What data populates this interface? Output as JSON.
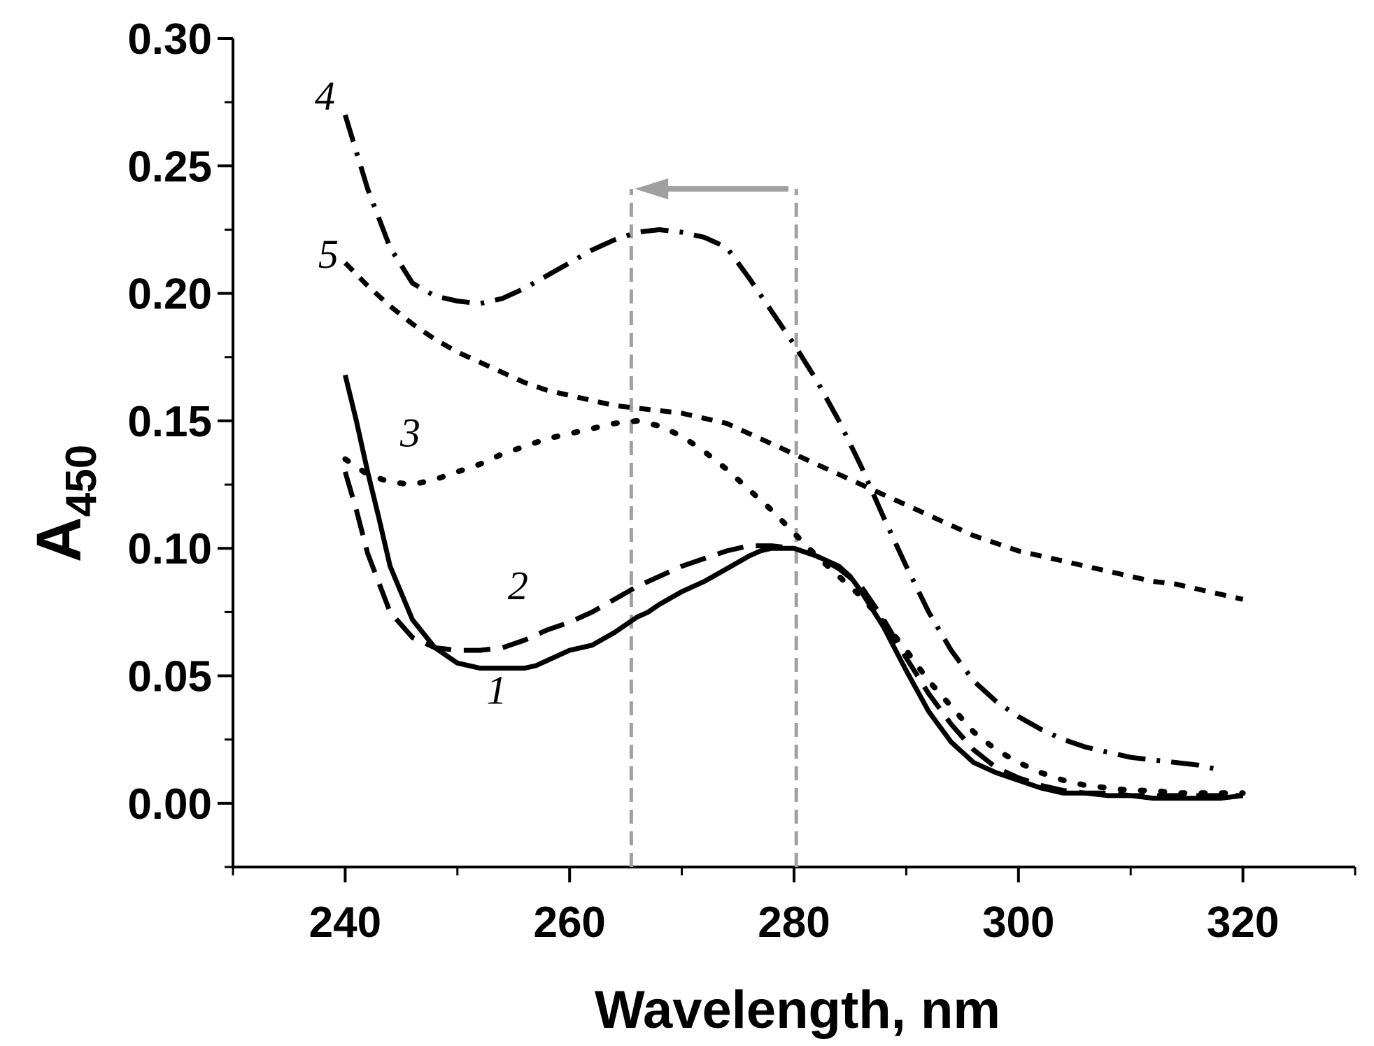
{
  "chart_data": {
    "type": "line",
    "title": "",
    "xlabel": "Wavelength, nm",
    "ylabel_main": "A",
    "ylabel_sub": "450",
    "xlim": [
      230,
      330
    ],
    "ylim": [
      -0.025,
      0.3
    ],
    "x_ticks": [
      {
        "value": 240,
        "label": "240"
      },
      {
        "value": 260,
        "label": "260"
      },
      {
        "value": 280,
        "label": "280"
      },
      {
        "value": 300,
        "label": "300"
      },
      {
        "value": 320,
        "label": "320"
      }
    ],
    "y_ticks": [
      {
        "value": 0.0,
        "label": "0.00"
      },
      {
        "value": 0.05,
        "label": "0.05"
      },
      {
        "value": 0.1,
        "label": "0.10"
      },
      {
        "value": 0.15,
        "label": "0.15"
      },
      {
        "value": 0.2,
        "label": "0.20"
      },
      {
        "value": 0.25,
        "label": "0.25"
      },
      {
        "value": 0.3,
        "label": "0.30"
      }
    ],
    "grid": false,
    "series": [
      {
        "name": "1",
        "style": "solid",
        "x": [
          240,
          241,
          242,
          243,
          244,
          246,
          248,
          250,
          252,
          254,
          256,
          257,
          258,
          260,
          262,
          264,
          265,
          266,
          267,
          268,
          270,
          272,
          274,
          276,
          277,
          278,
          279,
          280,
          282,
          284,
          285,
          286,
          288,
          290,
          292,
          294,
          296,
          298,
          300,
          302,
          304,
          306,
          308,
          310,
          312,
          314,
          316,
          318,
          320
        ],
        "y": [
          0.168,
          0.15,
          0.13,
          0.112,
          0.093,
          0.072,
          0.061,
          0.055,
          0.053,
          0.053,
          0.053,
          0.054,
          0.056,
          0.06,
          0.062,
          0.067,
          0.07,
          0.073,
          0.075,
          0.078,
          0.083,
          0.087,
          0.092,
          0.097,
          0.099,
          0.1,
          0.1,
          0.1,
          0.097,
          0.093,
          0.089,
          0.083,
          0.069,
          0.052,
          0.036,
          0.024,
          0.016,
          0.012,
          0.009,
          0.006,
          0.004,
          0.004,
          0.003,
          0.003,
          0.002,
          0.002,
          0.002,
          0.002,
          0.003
        ]
      },
      {
        "name": "2",
        "style": "dash",
        "x": [
          240,
          241,
          242,
          244,
          246,
          248,
          250,
          252,
          254,
          256,
          258,
          260,
          262,
          264,
          266,
          268,
          270,
          272,
          274,
          276,
          278,
          280,
          282,
          284,
          286,
          288,
          290,
          292,
          294,
          296,
          298,
          300,
          302,
          304,
          306,
          308,
          310,
          312,
          314,
          316,
          318,
          320
        ],
        "y": [
          0.13,
          0.115,
          0.098,
          0.075,
          0.065,
          0.061,
          0.06,
          0.06,
          0.061,
          0.064,
          0.068,
          0.071,
          0.075,
          0.08,
          0.085,
          0.089,
          0.093,
          0.096,
          0.099,
          0.101,
          0.101,
          0.1,
          0.097,
          0.092,
          0.085,
          0.072,
          0.057,
          0.043,
          0.031,
          0.021,
          0.014,
          0.01,
          0.007,
          0.005,
          0.004,
          0.004,
          0.003,
          0.003,
          0.003,
          0.003,
          0.003,
          0.003
        ]
      },
      {
        "name": "3",
        "style": "dot",
        "x": [
          240,
          242,
          244,
          246,
          248,
          250,
          252,
          254,
          256,
          258,
          260,
          262,
          264,
          266,
          268,
          270,
          272,
          274,
          276,
          278,
          280,
          282,
          284,
          286,
          288,
          290,
          292,
          294,
          296,
          298,
          300,
          302,
          304,
          306,
          308,
          310,
          312,
          314,
          316,
          318,
          320
        ],
        "y": [
          0.135,
          0.129,
          0.126,
          0.125,
          0.127,
          0.13,
          0.133,
          0.137,
          0.14,
          0.143,
          0.145,
          0.147,
          0.149,
          0.15,
          0.148,
          0.144,
          0.138,
          0.131,
          0.123,
          0.115,
          0.106,
          0.097,
          0.089,
          0.081,
          0.071,
          0.06,
          0.048,
          0.038,
          0.028,
          0.021,
          0.016,
          0.012,
          0.009,
          0.007,
          0.006,
          0.005,
          0.005,
          0.004,
          0.004,
          0.004,
          0.004
        ]
      },
      {
        "name": "4",
        "style": "dashdot",
        "x": [
          240,
          242,
          244,
          246,
          248,
          250,
          252,
          254,
          256,
          258,
          260,
          262,
          264,
          266,
          268,
          270,
          272,
          274,
          276,
          278,
          280,
          282,
          284,
          286,
          288,
          290,
          292,
          294,
          296,
          298,
          300,
          302,
          304,
          306,
          308,
          310,
          312,
          314,
          316,
          318
        ],
        "y": [
          0.27,
          0.241,
          0.218,
          0.204,
          0.199,
          0.197,
          0.196,
          0.198,
          0.202,
          0.207,
          0.212,
          0.217,
          0.221,
          0.224,
          0.225,
          0.224,
          0.222,
          0.218,
          0.206,
          0.193,
          0.18,
          0.166,
          0.15,
          0.132,
          0.112,
          0.093,
          0.075,
          0.06,
          0.048,
          0.04,
          0.034,
          0.029,
          0.025,
          0.022,
          0.02,
          0.018,
          0.017,
          0.016,
          0.015,
          0.013
        ]
      },
      {
        "name": "5",
        "style": "shortdash",
        "x": [
          240,
          242,
          244,
          246,
          248,
          250,
          252,
          254,
          256,
          258,
          260,
          262,
          264,
          266,
          268,
          270,
          272,
          274,
          276,
          278,
          280,
          282,
          284,
          286,
          288,
          290,
          292,
          294,
          296,
          298,
          300,
          302,
          304,
          306,
          308,
          310,
          312,
          314,
          316,
          318,
          320
        ],
        "y": [
          0.212,
          0.203,
          0.195,
          0.188,
          0.182,
          0.177,
          0.173,
          0.169,
          0.165,
          0.162,
          0.16,
          0.158,
          0.156,
          0.155,
          0.154,
          0.153,
          0.151,
          0.149,
          0.145,
          0.141,
          0.137,
          0.133,
          0.129,
          0.125,
          0.121,
          0.117,
          0.113,
          0.109,
          0.105,
          0.102,
          0.099,
          0.097,
          0.095,
          0.093,
          0.091,
          0.089,
          0.087,
          0.086,
          0.084,
          0.082,
          0.08
        ]
      }
    ],
    "annotations": {
      "series_labels": [
        {
          "text": "1",
          "x": 253.5,
          "y": 0.039
        },
        {
          "text": "2",
          "x": 255.4,
          "y": 0.08
        },
        {
          "text": "3",
          "x": 245.8,
          "y": 0.14
        },
        {
          "text": "4",
          "x": 238.2,
          "y": 0.272
        },
        {
          "text": "5",
          "x": 238.5,
          "y": 0.21
        }
      ],
      "vlines": [
        265.5,
        280.2
      ],
      "vline_top": 0.241,
      "arrow": {
        "from": 279.5,
        "to": 265.8,
        "y": 0.241
      }
    },
    "colors": {
      "series": "#000000",
      "annotation": "#a0a0a0",
      "axis": "#000000"
    }
  }
}
